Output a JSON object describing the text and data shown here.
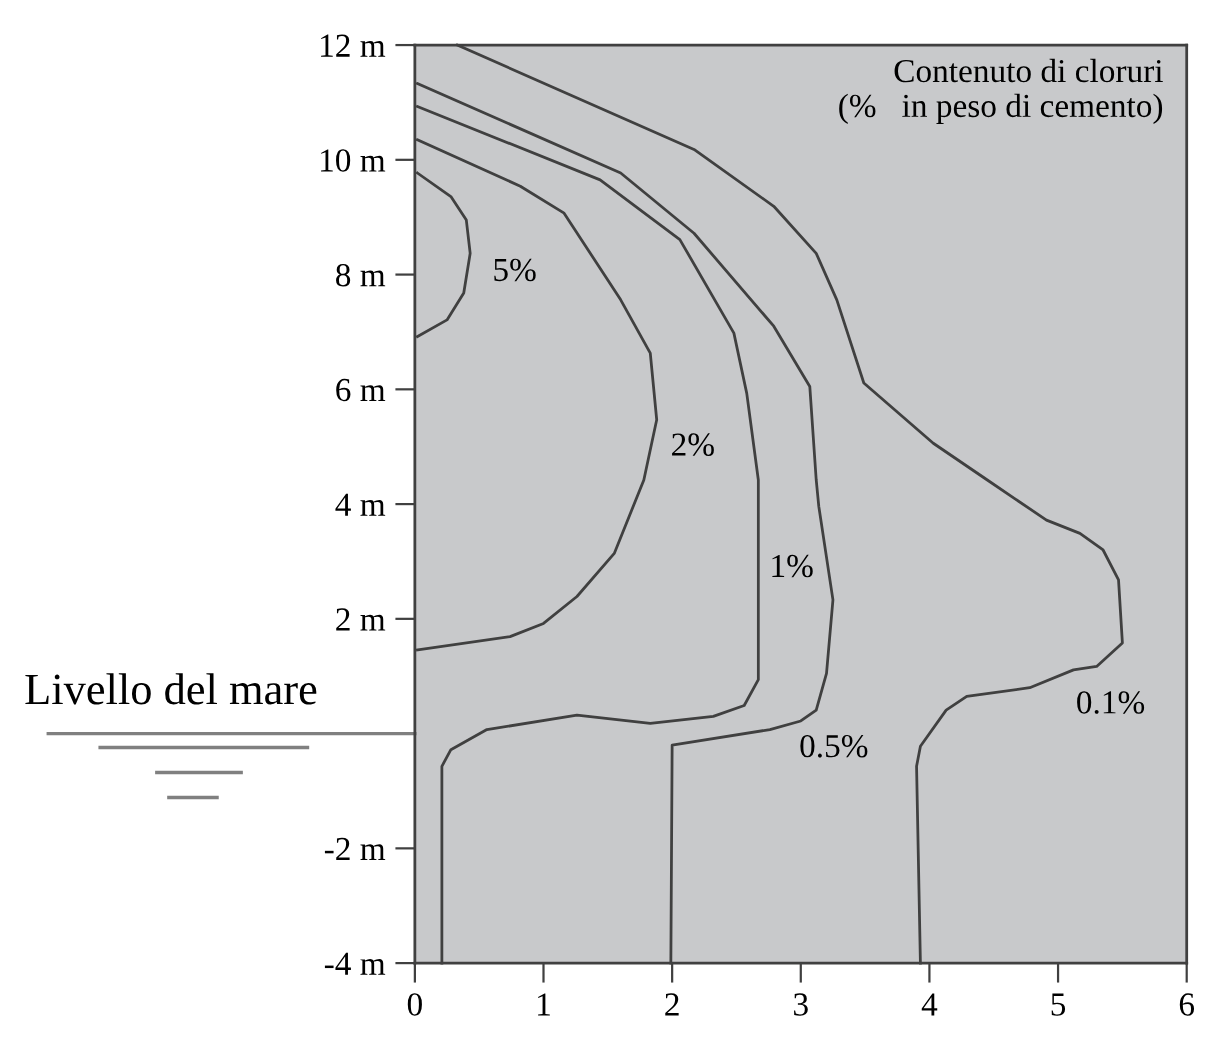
{
  "chart_data": {
    "type": "line",
    "xlim": [
      0,
      6
    ],
    "xticks": [
      0,
      1,
      2,
      3,
      4,
      5,
      6
    ],
    "ylim": [
      -4,
      12
    ],
    "yticks": [
      {
        "value": -4,
        "label": "-4 m"
      },
      {
        "value": -2,
        "label": "-2 m"
      },
      {
        "value": 0,
        "label": null
      },
      {
        "value": 2,
        "label": "2 m"
      },
      {
        "value": 4,
        "label": "4 m"
      },
      {
        "value": 6,
        "label": "6 m"
      },
      {
        "value": 8,
        "label": "8 m"
      },
      {
        "value": 10,
        "label": "10 m"
      },
      {
        "value": 12,
        "label": "12 m"
      }
    ],
    "grid": false,
    "legend": false,
    "marker": "none",
    "line_style": "solid",
    "series": [
      {
        "name": "0.1%",
        "color": "#404040",
        "x": [
          0.33,
          2.17,
          2.79,
          3.12,
          3.28,
          3.49,
          4.03,
          4.45,
          4.91,
          5.17,
          5.35,
          5.47,
          5.5,
          5.3,
          5.12,
          4.78,
          4.29,
          4.13,
          3.93,
          3.9,
          3.93
        ],
        "values": [
          12,
          10.18,
          9.19,
          8.37,
          7.56,
          6.11,
          5.06,
          4.42,
          3.72,
          3.49,
          3.2,
          2.68,
          1.58,
          1.17,
          1.11,
          0.8,
          0.65,
          0.41,
          -0.22,
          -0.57,
          -4
        ]
      },
      {
        "name": "0.5%",
        "color": "#404040",
        "x": [
          0.02,
          1.6,
          2.17,
          2.79,
          3.07,
          3.12,
          3.14,
          3.25,
          3.2,
          3.12,
          3.0,
          2.76,
          2.0,
          1.99
        ],
        "values": [
          11.33,
          9.77,
          8.72,
          7.1,
          6.05,
          4.42,
          3.96,
          2.33,
          1.05,
          0.41,
          0.22,
          0.07,
          -0.2,
          -4
        ]
      },
      {
        "name": "1%",
        "color": "#404040",
        "x": [
          0.02,
          1.44,
          2.06,
          2.48,
          2.58,
          2.67,
          2.67,
          2.56,
          2.32,
          1.83,
          1.26,
          0.56,
          0.28,
          0.21,
          0.21
        ],
        "values": [
          10.93,
          9.65,
          8.61,
          6.98,
          5.93,
          4.42,
          0.94,
          0.49,
          0.3,
          0.18,
          0.32,
          0.07,
          -0.28,
          -0.57,
          -4
        ]
      },
      {
        "name": "2%",
        "color": "#404040",
        "x": [
          0.02,
          0.82,
          1.16,
          1.6,
          1.83,
          1.88,
          1.78,
          1.55,
          1.26,
          1.0,
          0.74,
          0.02
        ],
        "values": [
          10.35,
          9.54,
          9.07,
          7.56,
          6.63,
          5.47,
          4.42,
          3.14,
          2.39,
          1.92,
          1.69,
          1.46
        ]
      },
      {
        "name": "5%",
        "color": "#404040",
        "x": [
          0.02,
          0.28,
          0.4,
          0.43,
          0.38,
          0.25,
          0.02
        ],
        "values": [
          9.77,
          9.36,
          8.95,
          8.37,
          7.68,
          7.21,
          6.92
        ]
      }
    ],
    "annotations": [
      "Contenuto di cloruri\n  (%   in peso di cemento)"
    ],
    "ref_lines": [
      {
        "axis": "y",
        "value": 0,
        "label": "Livello del mare",
        "color": "#808080"
      }
    ]
  }
}
